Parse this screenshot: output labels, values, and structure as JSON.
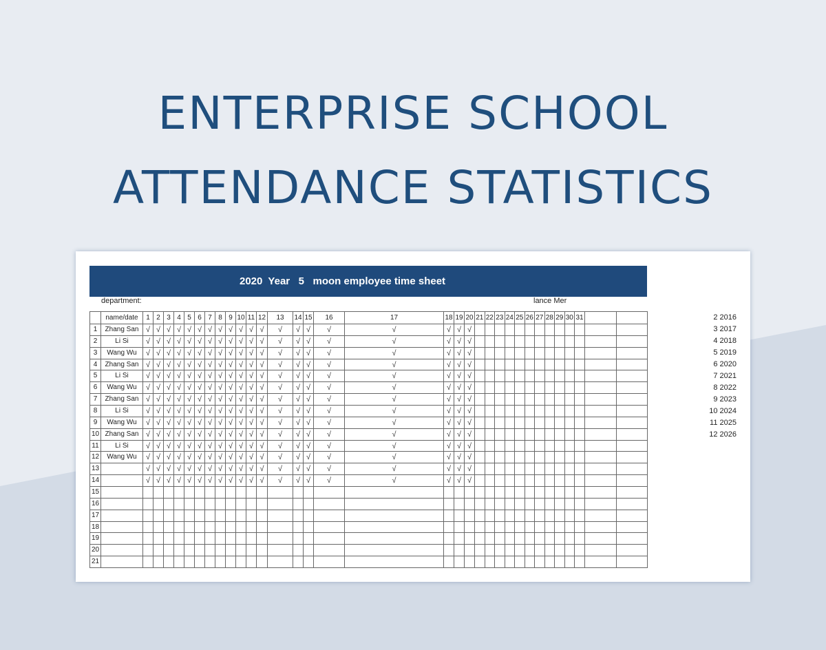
{
  "title_lines": [
    "ENTERPRISE SCHOOL",
    "ATTENDANCE STATISTICS"
  ],
  "colors": {
    "title": "#1f4e7d",
    "banner": "#1f4a7c",
    "background": "#e8ecf2",
    "background_band": "#d3dbe6"
  },
  "sheet": {
    "banner": "2020  Year   5   moon employee time sheet",
    "department_label": "department:",
    "right_label": "lance Mer",
    "header": [
      "",
      "name/date",
      "1",
      "2",
      "3",
      "4",
      "5",
      "6",
      "7",
      "8",
      "9",
      "10",
      "11",
      "12",
      "13",
      "14",
      "15",
      "16",
      "17",
      "18",
      "19",
      "20",
      "21",
      "22",
      "23",
      "24",
      "25",
      "26",
      "27",
      "28",
      "29",
      "30",
      "31",
      "",
      ""
    ],
    "check_mark": "√",
    "rows": [
      {
        "no": "1",
        "name": "Zhang San",
        "checked_days": [
          1,
          2,
          3,
          4,
          5,
          6,
          7,
          8,
          9,
          10,
          11,
          12,
          13,
          14,
          15,
          16,
          17,
          18,
          19,
          20
        ]
      },
      {
        "no": "2",
        "name": "Li Si",
        "checked_days": [
          1,
          2,
          3,
          4,
          5,
          6,
          7,
          8,
          9,
          10,
          11,
          12,
          13,
          14,
          15,
          16,
          17,
          18,
          19,
          20
        ]
      },
      {
        "no": "3",
        "name": "Wang Wu",
        "checked_days": [
          1,
          2,
          3,
          4,
          5,
          6,
          7,
          8,
          9,
          10,
          11,
          12,
          13,
          14,
          15,
          16,
          17,
          18,
          19,
          20
        ]
      },
      {
        "no": "4",
        "name": "Zhang San",
        "checked_days": [
          1,
          2,
          3,
          4,
          5,
          6,
          7,
          8,
          9,
          10,
          11,
          12,
          13,
          14,
          15,
          16,
          17,
          18,
          19,
          20
        ]
      },
      {
        "no": "5",
        "name": "Li Si",
        "checked_days": [
          1,
          2,
          3,
          4,
          5,
          6,
          7,
          8,
          9,
          10,
          11,
          12,
          13,
          14,
          15,
          16,
          17,
          18,
          19,
          20
        ]
      },
      {
        "no": "6",
        "name": "Wang Wu",
        "checked_days": [
          1,
          2,
          3,
          4,
          5,
          6,
          7,
          8,
          9,
          10,
          11,
          12,
          13,
          14,
          15,
          16,
          17,
          18,
          19,
          20
        ]
      },
      {
        "no": "7",
        "name": "Zhang San",
        "checked_days": [
          1,
          2,
          3,
          4,
          5,
          6,
          7,
          8,
          9,
          10,
          11,
          12,
          13,
          14,
          15,
          16,
          17,
          18,
          19,
          20
        ]
      },
      {
        "no": "8",
        "name": "Li Si",
        "checked_days": [
          1,
          2,
          3,
          4,
          5,
          6,
          7,
          8,
          9,
          10,
          11,
          12,
          13,
          14,
          15,
          16,
          17,
          18,
          19,
          20
        ]
      },
      {
        "no": "9",
        "name": "Wang Wu",
        "checked_days": [
          1,
          2,
          3,
          4,
          5,
          6,
          7,
          8,
          9,
          10,
          11,
          12,
          13,
          14,
          15,
          16,
          17,
          18,
          19,
          20
        ]
      },
      {
        "no": "10",
        "name": "Zhang San",
        "checked_days": [
          1,
          2,
          3,
          4,
          5,
          6,
          7,
          8,
          9,
          10,
          11,
          12,
          13,
          14,
          15,
          16,
          17,
          18,
          19,
          20
        ]
      },
      {
        "no": "11",
        "name": "Li Si",
        "checked_days": [
          1,
          2,
          3,
          4,
          5,
          6,
          7,
          8,
          9,
          10,
          11,
          12,
          13,
          14,
          15,
          16,
          17,
          18,
          19,
          20
        ]
      },
      {
        "no": "12",
        "name": "Wang Wu",
        "checked_days": [
          1,
          2,
          3,
          4,
          5,
          6,
          7,
          8,
          9,
          10,
          11,
          12,
          13,
          14,
          15,
          16,
          17,
          18,
          19,
          20
        ]
      },
      {
        "no": "13",
        "name": "",
        "checked_days": [
          1,
          2,
          3,
          4,
          5,
          6,
          7,
          8,
          9,
          10,
          11,
          12,
          13,
          14,
          15,
          16,
          17,
          18,
          19,
          20
        ]
      },
      {
        "no": "14",
        "name": "",
        "checked_days": [
          1,
          2,
          3,
          4,
          5,
          6,
          7,
          8,
          9,
          10,
          11,
          12,
          13,
          14,
          15,
          16,
          17,
          18,
          19,
          20
        ]
      },
      {
        "no": "15",
        "name": "",
        "checked_days": []
      },
      {
        "no": "16",
        "name": "",
        "checked_days": []
      },
      {
        "no": "17",
        "name": "",
        "checked_days": []
      },
      {
        "no": "18",
        "name": "",
        "checked_days": []
      },
      {
        "no": "19",
        "name": "",
        "checked_days": []
      },
      {
        "no": "20",
        "name": "",
        "checked_days": []
      },
      {
        "no": "21",
        "name": "",
        "checked_days": []
      }
    ],
    "side_list": [
      "2 2016",
      "3 2017",
      "4 2018",
      "5 2019",
      "6 2020",
      "7 2021",
      "8 2022",
      "9 2023",
      "10 2024",
      "11 2025",
      "12 2026"
    ]
  }
}
